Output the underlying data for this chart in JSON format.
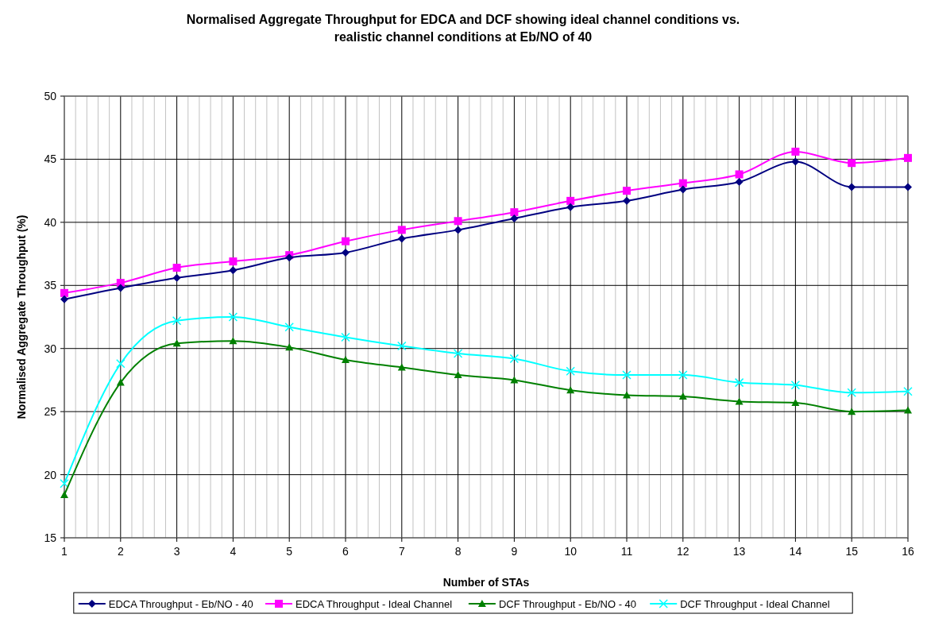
{
  "chart_data": {
    "type": "line",
    "title": "Normalised Aggregate Throughput for EDCA and DCF showing ideal channel conditions vs. realistic channel conditions at Eb/NO of 40",
    "xlabel": "Number of STAs",
    "ylabel": "Normalised Aggregate Throughput (%)",
    "x": [
      1,
      2,
      3,
      4,
      5,
      6,
      7,
      8,
      9,
      10,
      11,
      12,
      13,
      14,
      15,
      16
    ],
    "xlim": [
      1,
      16
    ],
    "xticks": [
      1,
      {
        "value": 1.2,
        "label": null
      },
      {
        "value": 1.4,
        "label": null
      },
      {
        "value": 1.6,
        "label": null
      },
      {
        "value": 1.8,
        "label": null
      },
      2,
      {
        "value": 2.2,
        "label": null
      },
      {
        "value": 2.4,
        "label": null
      },
      {
        "value": 2.6,
        "label": null
      },
      {
        "value": 2.8,
        "label": null
      },
      3,
      {
        "value": 3.2,
        "label": null
      },
      {
        "value": 3.4,
        "label": null
      },
      {
        "value": 3.6,
        "label": null
      },
      {
        "value": 3.8,
        "label": null
      },
      4,
      {
        "value": 4.2,
        "label": null
      },
      {
        "value": 4.4,
        "label": null
      },
      {
        "value": 4.6,
        "label": null
      },
      {
        "value": 4.8,
        "label": null
      },
      5,
      {
        "value": 5.2,
        "label": null
      },
      {
        "value": 5.4,
        "label": null
      },
      {
        "value": 5.6,
        "label": null
      },
      {
        "value": 5.8,
        "label": null
      },
      6,
      {
        "value": 6.2,
        "label": null
      },
      {
        "value": 6.4,
        "label": null
      },
      {
        "value": 6.6,
        "label": null
      },
      {
        "value": 6.8,
        "label": null
      },
      7,
      {
        "value": 7.2,
        "label": null
      },
      {
        "value": 7.4,
        "label": null
      },
      {
        "value": 7.6,
        "label": null
      },
      {
        "value": 7.8,
        "label": null
      },
      8,
      {
        "value": 8.2,
        "label": null
      },
      {
        "value": 8.4,
        "label": null
      },
      {
        "value": 8.6,
        "label": null
      },
      {
        "value": 8.8,
        "label": null
      },
      9,
      {
        "value": 9.2,
        "label": null
      },
      {
        "value": 9.4,
        "label": null
      },
      {
        "value": 9.6,
        "label": null
      },
      {
        "value": 9.8,
        "label": null
      },
      10,
      {
        "value": 10.2,
        "label": null
      },
      {
        "value": 10.4,
        "label": null
      },
      {
        "value": 10.6,
        "label": null
      },
      {
        "value": 10.8,
        "label": null
      },
      11,
      {
        "value": 11.2,
        "label": null
      },
      {
        "value": 11.4,
        "label": null
      },
      {
        "value": 11.6,
        "label": null
      },
      {
        "value": 11.8,
        "label": null
      },
      12,
      {
        "value": 12.2,
        "label": null
      },
      {
        "value": 12.4,
        "label": null
      },
      {
        "value": 12.6,
        "label": null
      },
      {
        "value": 12.8,
        "label": null
      },
      13,
      {
        "value": 13.2,
        "label": null
      },
      {
        "value": 13.4,
        "label": null
      },
      {
        "value": 13.6,
        "label": null
      },
      {
        "value": 13.8,
        "label": null
      },
      14,
      {
        "value": 14.2,
        "label": null
      },
      {
        "value": 14.4,
        "label": null
      },
      {
        "value": 14.6,
        "label": null
      },
      {
        "value": 14.8,
        "label": null
      },
      15,
      {
        "value": 15.2,
        "label": null
      },
      {
        "value": 15.4,
        "label": null
      },
      {
        "value": 15.6,
        "label": null
      },
      {
        "value": 15.8,
        "label": null
      },
      16
    ],
    "ylim": [
      15,
      50
    ],
    "yticks": [
      15,
      20,
      25,
      30,
      35,
      40,
      45,
      50
    ],
    "grid": true,
    "legend": "bottom",
    "line_style": "solid",
    "series": [
      {
        "name": "EDCA Throughput - Eb/NO - 40",
        "color": "#000080",
        "marker": "diamond",
        "values": [
          33.9,
          34.8,
          35.6,
          36.2,
          37.2,
          37.6,
          38.7,
          39.4,
          40.3,
          41.2,
          41.7,
          42.6,
          43.2,
          44.8,
          42.8,
          42.8
        ]
      },
      {
        "name": "EDCA Throughput - Ideal Channel",
        "color": "#ff00ff",
        "marker": "square",
        "values": [
          34.4,
          35.2,
          36.4,
          36.9,
          37.4,
          38.5,
          39.4,
          40.1,
          40.8,
          41.7,
          42.5,
          43.1,
          43.8,
          45.6,
          44.7,
          45.1
        ]
      },
      {
        "name": "DCF Throughput - Eb/NO - 40",
        "color": "#008000",
        "marker": "triangle",
        "values": [
          18.4,
          27.3,
          30.4,
          30.6,
          30.1,
          29.1,
          28.5,
          27.9,
          27.5,
          26.7,
          26.3,
          26.2,
          25.8,
          25.7,
          25.0,
          25.1
        ]
      },
      {
        "name": "DCF Throughput - Ideal Channel",
        "color": "#00ffff",
        "marker": "cross",
        "values": [
          19.3,
          28.8,
          32.2,
          32.5,
          31.7,
          30.9,
          30.2,
          29.6,
          29.2,
          28.2,
          27.9,
          27.9,
          27.3,
          27.1,
          26.5,
          26.6
        ]
      }
    ]
  }
}
